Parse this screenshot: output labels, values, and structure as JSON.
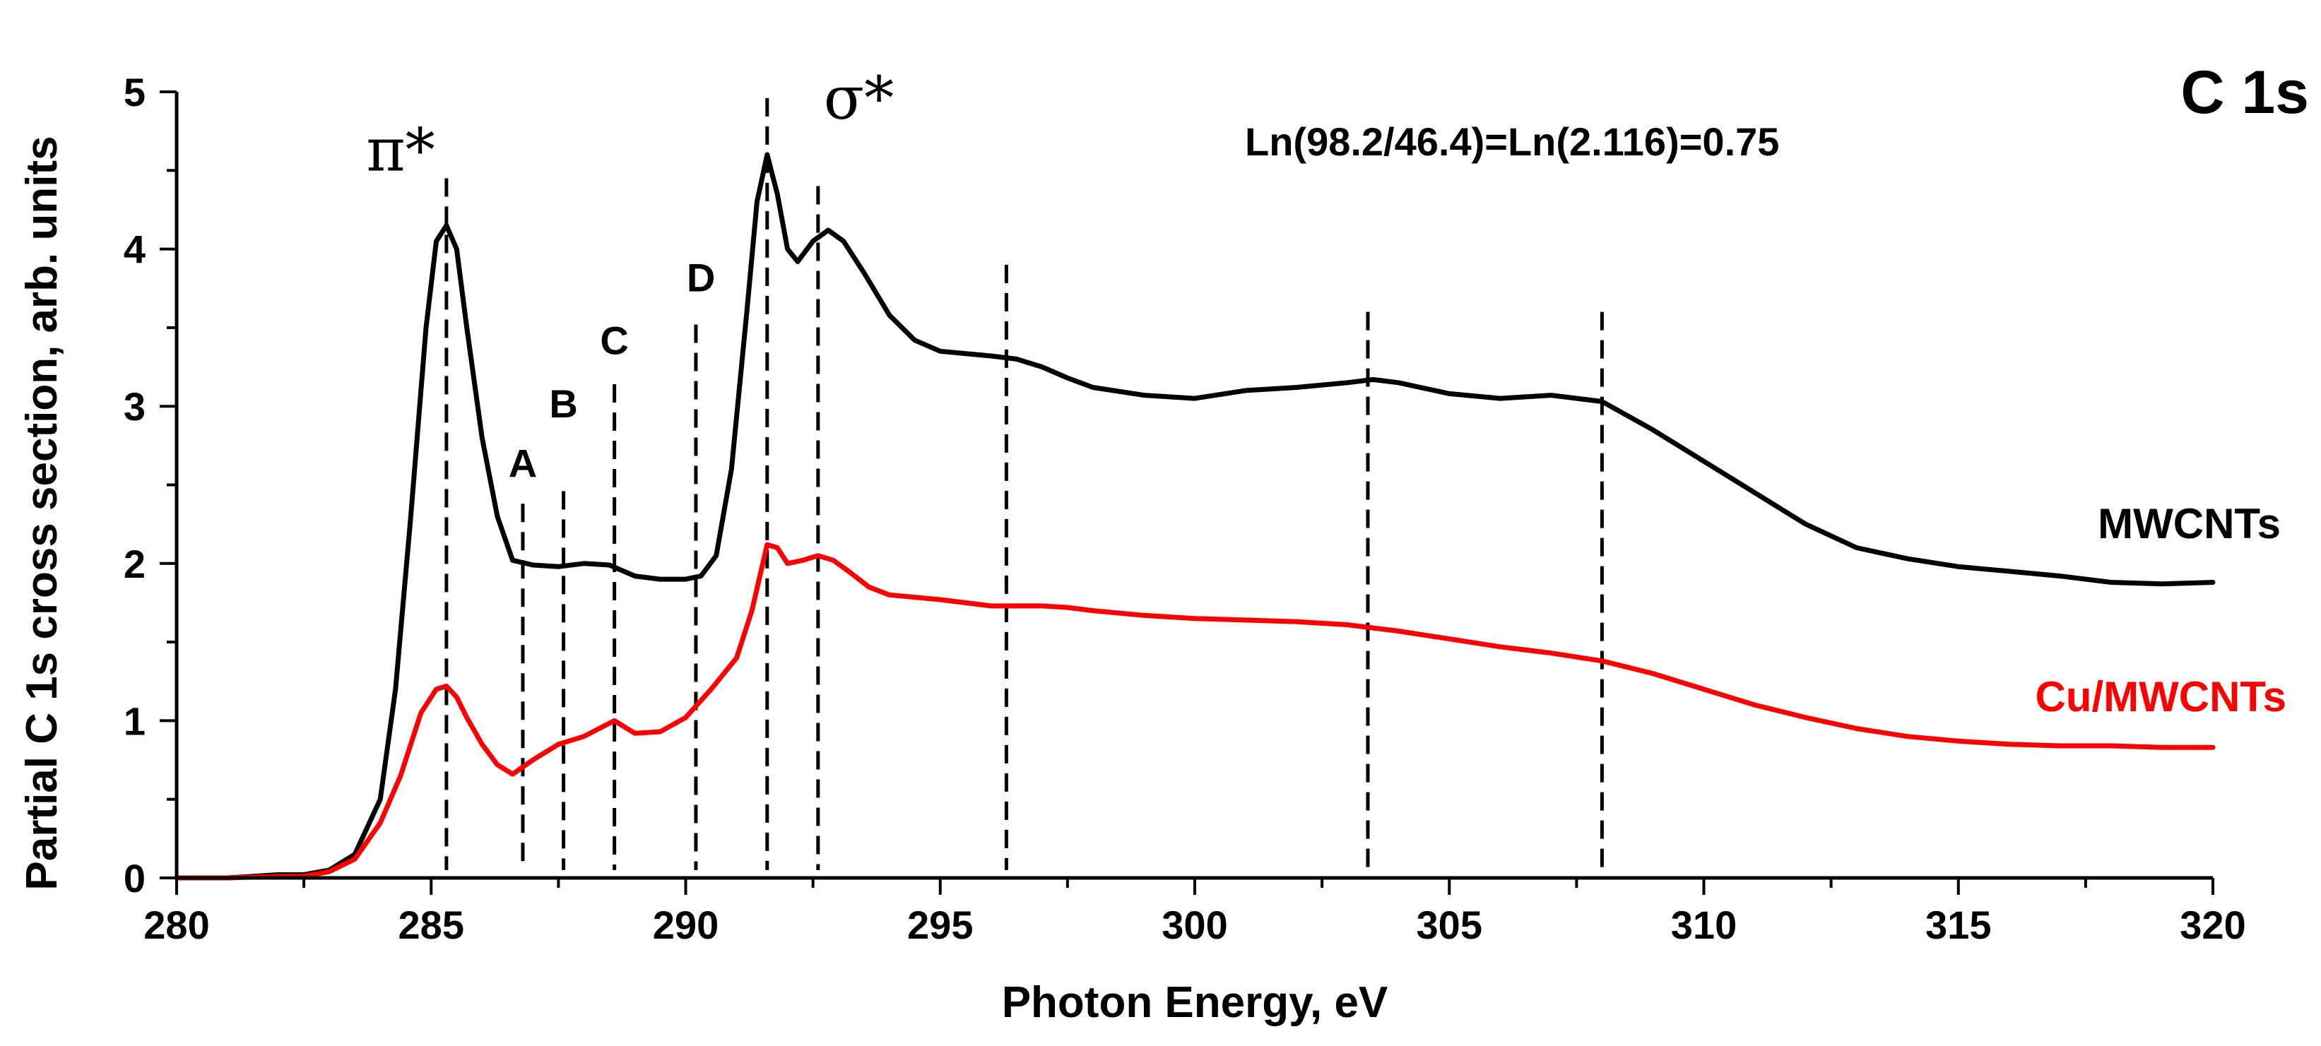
{
  "chart_data": {
    "type": "line",
    "title": "C 1s",
    "xlabel": "Photon Energy, eV",
    "ylabel": "Partial C 1s cross section, arb. units",
    "xlim": [
      280,
      320
    ],
    "ylim": [
      0,
      5
    ],
    "xticks": [
      280,
      285,
      290,
      295,
      300,
      305,
      310,
      315,
      320
    ],
    "yticks": [
      0,
      1,
      2,
      3,
      4,
      5
    ],
    "formula": "Ln(98.2/46.4)=Ln(2.116)=0.75",
    "series": [
      {
        "name": "MWCNTs",
        "color": "#000000",
        "x": [
          280,
          281,
          282,
          282.5,
          283,
          283.5,
          284,
          284.3,
          284.6,
          284.9,
          285.1,
          285.3,
          285.5,
          285.7,
          286,
          286.3,
          286.6,
          287,
          287.5,
          288,
          288.5,
          289,
          289.5,
          290,
          290.3,
          290.6,
          290.9,
          291.2,
          291.4,
          291.6,
          291.8,
          292,
          292.2,
          292.5,
          292.8,
          293.1,
          293.5,
          294,
          294.5,
          295,
          296,
          296.5,
          297,
          297.5,
          298,
          299,
          300,
          301,
          302,
          303,
          303.5,
          304,
          305,
          306,
          307,
          308,
          309,
          310,
          311,
          312,
          313,
          314,
          315,
          316,
          317,
          318,
          319,
          320
        ],
        "y": [
          0.0,
          0.0,
          0.02,
          0.02,
          0.05,
          0.15,
          0.5,
          1.2,
          2.3,
          3.5,
          4.05,
          4.15,
          4.0,
          3.5,
          2.8,
          2.3,
          2.02,
          1.99,
          1.98,
          2.0,
          1.99,
          1.92,
          1.9,
          1.9,
          1.92,
          2.05,
          2.6,
          3.6,
          4.3,
          4.6,
          4.35,
          4.0,
          3.92,
          4.05,
          4.12,
          4.05,
          3.85,
          3.58,
          3.42,
          3.35,
          3.32,
          3.3,
          3.25,
          3.18,
          3.12,
          3.07,
          3.05,
          3.1,
          3.12,
          3.15,
          3.17,
          3.15,
          3.08,
          3.05,
          3.07,
          3.03,
          2.85,
          2.65,
          2.45,
          2.25,
          2.1,
          2.03,
          1.98,
          1.95,
          1.92,
          1.88,
          1.87,
          1.88
        ]
      },
      {
        "name": "Cu/MWCNTs",
        "color": "#ff0000",
        "x": [
          280,
          281,
          282,
          282.5,
          283,
          283.5,
          284,
          284.4,
          284.8,
          285.1,
          285.3,
          285.5,
          285.7,
          286,
          286.3,
          286.6,
          287,
          287.5,
          288,
          288.3,
          288.6,
          289,
          289.5,
          290,
          290.5,
          291,
          291.3,
          291.6,
          291.8,
          292,
          292.3,
          292.6,
          292.9,
          293.2,
          293.6,
          294,
          295,
          296,
          297,
          297.5,
          298,
          299,
          300,
          301,
          302,
          303,
          304,
          305,
          306,
          307,
          308,
          309,
          310,
          311,
          312,
          313,
          314,
          315,
          316,
          317,
          318,
          319,
          320
        ],
        "y": [
          0.0,
          0.0,
          0.01,
          0.01,
          0.04,
          0.12,
          0.35,
          0.65,
          1.05,
          1.2,
          1.22,
          1.15,
          1.02,
          0.85,
          0.72,
          0.66,
          0.75,
          0.85,
          0.9,
          0.95,
          1.0,
          0.92,
          0.93,
          1.02,
          1.2,
          1.4,
          1.7,
          2.12,
          2.1,
          2.0,
          2.02,
          2.05,
          2.02,
          1.95,
          1.85,
          1.8,
          1.77,
          1.73,
          1.73,
          1.72,
          1.7,
          1.67,
          1.65,
          1.64,
          1.63,
          1.61,
          1.57,
          1.52,
          1.47,
          1.43,
          1.38,
          1.3,
          1.2,
          1.1,
          1.02,
          0.95,
          0.9,
          0.87,
          0.85,
          0.84,
          0.84,
          0.83,
          0.83
        ]
      }
    ],
    "dashed_lines": [
      {
        "x": 285.3,
        "label": "π*"
      },
      {
        "x": 286.8,
        "label": "A"
      },
      {
        "x": 287.6,
        "label": "B"
      },
      {
        "x": 288.6,
        "label": "C"
      },
      {
        "x": 290.2,
        "label": "D"
      },
      {
        "x": 291.6,
        "label": ""
      },
      {
        "x": 292.6,
        "label": "σ*"
      },
      {
        "x": 296.3,
        "label": ""
      },
      {
        "x": 303.4,
        "label": ""
      },
      {
        "x": 308.0,
        "label": ""
      }
    ]
  }
}
